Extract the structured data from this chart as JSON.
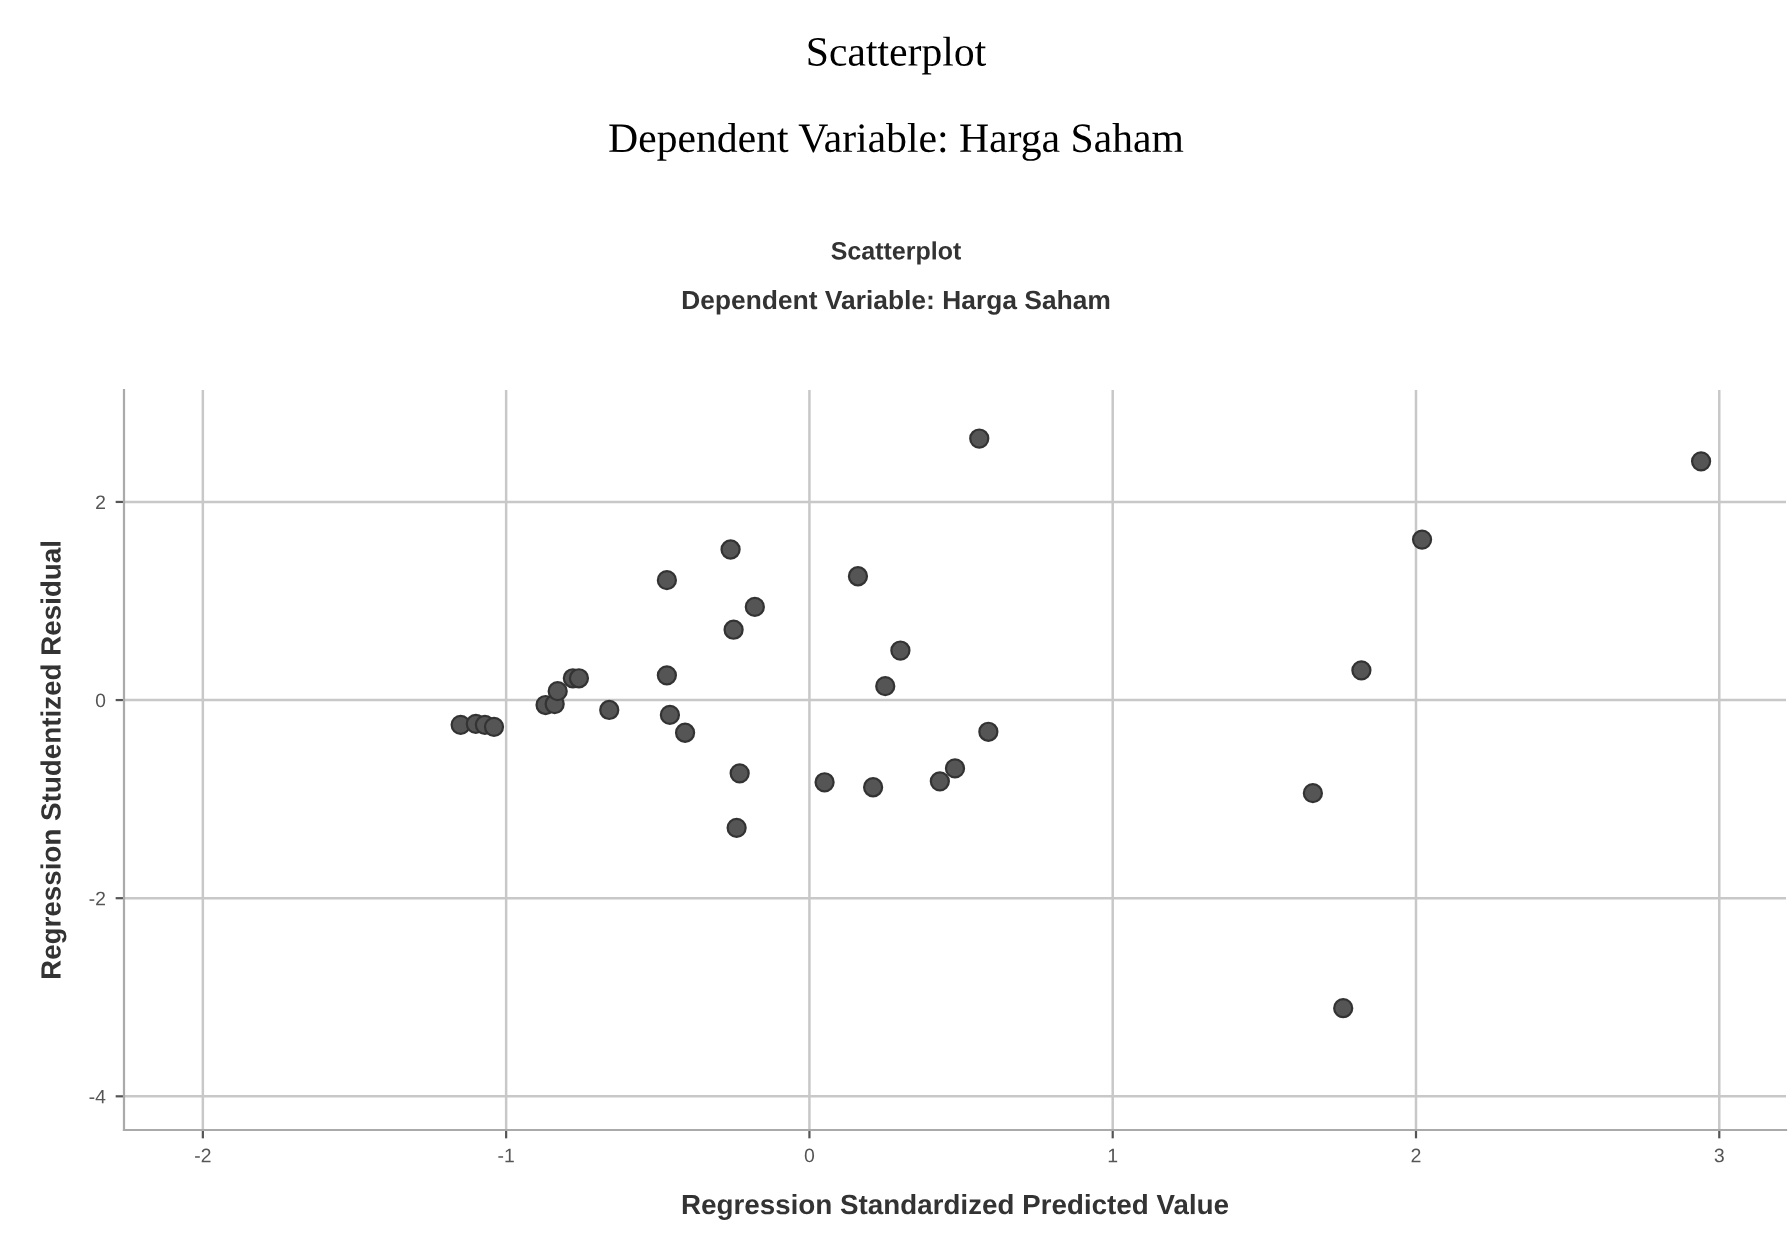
{
  "chart_data": {
    "type": "scatter",
    "title": "Scatterplot",
    "subtitle": "Dependent Variable: Harga Saham",
    "annotations": [
      "Scatterplot",
      "Dependent Variable: Harga Saham"
    ],
    "xlabel": "Regression Standardized Predicted Value",
    "ylabel": "Regression Studentized Residual",
    "x": [
      -1.15,
      -1.1,
      -1.07,
      -1.04,
      -0.87,
      -0.84,
      -0.83,
      -0.78,
      -0.76,
      -0.66,
      -0.47,
      -0.47,
      -0.46,
      -0.41,
      -0.26,
      -0.25,
      -0.18,
      -0.23,
      -0.24,
      0.05,
      0.16,
      0.21,
      0.3,
      0.25,
      0.56,
      0.59,
      0.48,
      0.43,
      2.02,
      1.82,
      1.66,
      2.94,
      1.76
    ],
    "series": [
      {
        "color": "#555555",
        "values": [
          -0.25,
          -0.24,
          -0.25,
          -0.27,
          -0.05,
          -0.04,
          0.09,
          0.22,
          0.22,
          -0.1,
          1.21,
          0.25,
          -0.15,
          -0.33,
          1.52,
          0.71,
          0.94,
          -0.74,
          -1.29,
          -0.83,
          1.25,
          -0.88,
          0.5,
          0.14,
          2.64,
          -0.32,
          -0.69,
          -0.82,
          1.62,
          0.3,
          -0.94,
          2.41,
          -3.11
        ]
      }
    ],
    "xlim": [
      -2.26,
      3.22
    ],
    "ylim": [
      -4.34,
      3.13
    ],
    "xticks": [
      -2,
      -1,
      0,
      1,
      2,
      3
    ],
    "yticks": [
      -4,
      -2,
      0,
      2
    ],
    "grid": true,
    "marker": "circle"
  }
}
